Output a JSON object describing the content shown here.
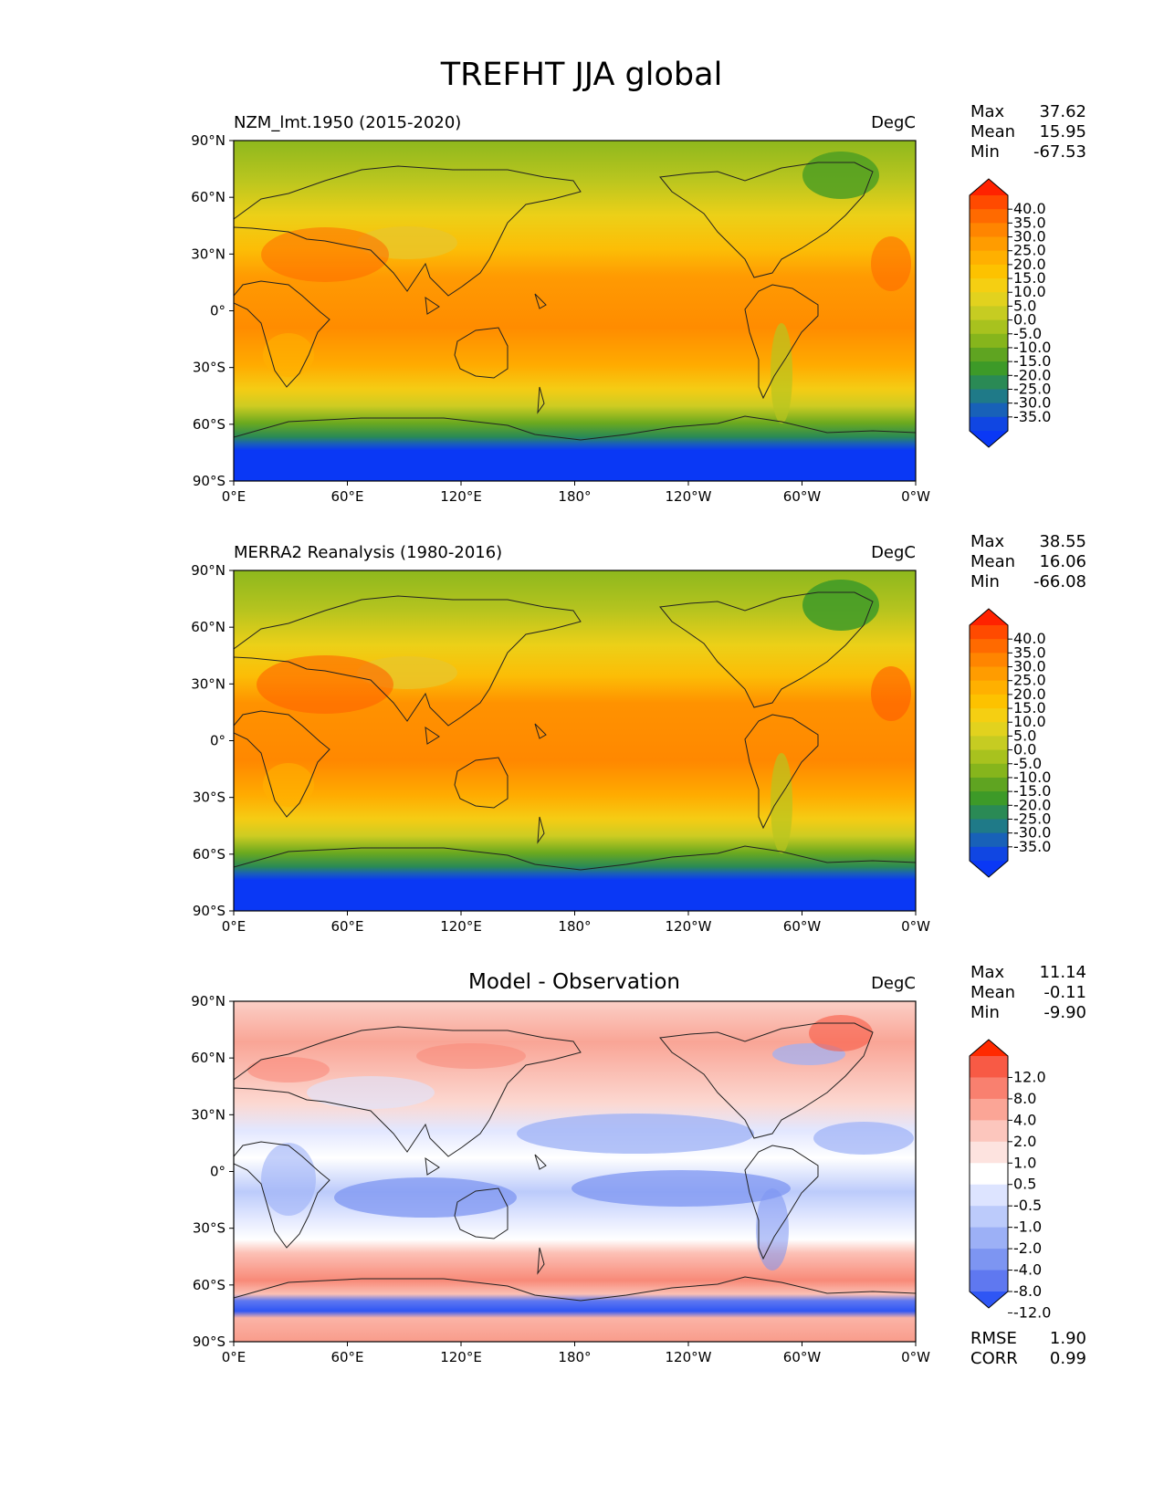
{
  "figure": {
    "title": "TREFHT JJA global"
  },
  "chart_data": [
    {
      "type": "heatmap",
      "panel": "model",
      "title": "NZM_lmt.1950 (2015-2020)",
      "units": "DegC",
      "x_ticks": [
        "0°E",
        "60°E",
        "120°E",
        "180°",
        "120°W",
        "60°W",
        "0°W"
      ],
      "y_ticks": [
        "90°N",
        "60°N",
        "30°N",
        "0°",
        "30°S",
        "60°S",
        "90°S"
      ],
      "xlim": [
        0,
        360
      ],
      "ylim": [
        -90,
        90
      ],
      "stats": [
        {
          "label": "Max",
          "value": "37.62"
        },
        {
          "label": "Mean",
          "value": "15.95"
        },
        {
          "label": "Min",
          "value": "-67.53"
        }
      ],
      "colorbar": {
        "labels": [
          "40.0",
          "35.0",
          "30.0",
          "25.0",
          "20.0",
          "15.0",
          "10.0",
          "5.0",
          "0.0",
          "-5.0",
          "-10.0",
          "-15.0",
          "-20.0",
          "-25.0",
          "-30.0",
          "-35.0"
        ],
        "colors": [
          "#ff2200",
          "#ff4a00",
          "#ff6a00",
          "#ff8500",
          "#ff9c00",
          "#ffb000",
          "#fdc200",
          "#f5cf12",
          "#e2d21e",
          "#c6cc22",
          "#a8c21e",
          "#86b51c",
          "#5fa421",
          "#3d9a28",
          "#2a8a55",
          "#1f7a88",
          "#1861b8",
          "#1046e2",
          "#0a38f5"
        ]
      },
      "zonal_profile_degC": [
        {
          "lat": 90,
          "value": 0
        },
        {
          "lat": 80,
          "value": 2
        },
        {
          "lat": 70,
          "value": 7
        },
        {
          "lat": 60,
          "value": 13
        },
        {
          "lat": 50,
          "value": 17
        },
        {
          "lat": 40,
          "value": 23
        },
        {
          "lat": 30,
          "value": 27
        },
        {
          "lat": 20,
          "value": 27
        },
        {
          "lat": 10,
          "value": 27
        },
        {
          "lat": 0,
          "value": 26
        },
        {
          "lat": -10,
          "value": 25
        },
        {
          "lat": -20,
          "value": 22
        },
        {
          "lat": -30,
          "value": 16
        },
        {
          "lat": -40,
          "value": 10
        },
        {
          "lat": -50,
          "value": 4
        },
        {
          "lat": -60,
          "value": -8
        },
        {
          "lat": -70,
          "value": -30
        },
        {
          "lat": -80,
          "value": -45
        },
        {
          "lat": -90,
          "value": -55
        }
      ]
    },
    {
      "type": "heatmap",
      "panel": "observation",
      "title": "MERRA2 Reanalysis (1980-2016)",
      "units": "DegC",
      "x_ticks": [
        "0°E",
        "60°E",
        "120°E",
        "180°",
        "120°W",
        "60°W",
        "0°W"
      ],
      "y_ticks": [
        "90°N",
        "60°N",
        "30°N",
        "0°",
        "30°S",
        "60°S",
        "90°S"
      ],
      "xlim": [
        0,
        360
      ],
      "ylim": [
        -90,
        90
      ],
      "stats": [
        {
          "label": "Max",
          "value": "38.55"
        },
        {
          "label": "Mean",
          "value": "16.06"
        },
        {
          "label": "Min",
          "value": "-66.08"
        }
      ],
      "colorbar": {
        "labels": [
          "40.0",
          "35.0",
          "30.0",
          "25.0",
          "20.0",
          "15.0",
          "10.0",
          "5.0",
          "0.0",
          "-5.0",
          "-10.0",
          "-15.0",
          "-20.0",
          "-25.0",
          "-30.0",
          "-35.0"
        ],
        "colors": [
          "#ff2200",
          "#ff4a00",
          "#ff6a00",
          "#ff8500",
          "#ff9c00",
          "#ffb000",
          "#fdc200",
          "#f5cf12",
          "#e2d21e",
          "#c6cc22",
          "#a8c21e",
          "#86b51c",
          "#5fa421",
          "#3d9a28",
          "#2a8a55",
          "#1f7a88",
          "#1861b8",
          "#1046e2",
          "#0a38f5"
        ]
      },
      "zonal_profile_degC": [
        {
          "lat": 90,
          "value": -1
        },
        {
          "lat": 80,
          "value": 1
        },
        {
          "lat": 70,
          "value": 6
        },
        {
          "lat": 60,
          "value": 12
        },
        {
          "lat": 50,
          "value": 16
        },
        {
          "lat": 40,
          "value": 23
        },
        {
          "lat": 30,
          "value": 27
        },
        {
          "lat": 20,
          "value": 28
        },
        {
          "lat": 10,
          "value": 28
        },
        {
          "lat": 0,
          "value": 27
        },
        {
          "lat": -10,
          "value": 26
        },
        {
          "lat": -20,
          "value": 23
        },
        {
          "lat": -30,
          "value": 17
        },
        {
          "lat": -40,
          "value": 11
        },
        {
          "lat": -50,
          "value": 3
        },
        {
          "lat": -60,
          "value": -9
        },
        {
          "lat": -70,
          "value": -32
        },
        {
          "lat": -80,
          "value": -48
        },
        {
          "lat": -90,
          "value": -55
        }
      ]
    },
    {
      "type": "heatmap",
      "panel": "difference",
      "title": "Model - Observation",
      "units": "DegC",
      "x_ticks": [
        "0°E",
        "60°E",
        "120°E",
        "180°",
        "120°W",
        "60°W",
        "0°W"
      ],
      "y_ticks": [
        "90°N",
        "60°N",
        "30°N",
        "0°",
        "30°S",
        "60°S",
        "90°S"
      ],
      "xlim": [
        0,
        360
      ],
      "ylim": [
        -90,
        90
      ],
      "stats": [
        {
          "label": "Max",
          "value": "11.14"
        },
        {
          "label": "Mean",
          "value": "-0.11"
        },
        {
          "label": "Min",
          "value": "-9.90"
        }
      ],
      "colorbar": {
        "labels": [
          "12.0",
          "8.0",
          "4.0",
          "2.0",
          "1.0",
          "0.5",
          "-0.5",
          "-1.0",
          "-2.0",
          "-4.0",
          "-8.0",
          "-12.0"
        ],
        "colors": [
          "#ff2a00",
          "#f85a45",
          "#f9806f",
          "#fba596",
          "#fcc6bd",
          "#fde3df",
          "#ffffff",
          "#dde4ff",
          "#bccbfb",
          "#9cb0f6",
          "#7d95f2",
          "#5f78f0",
          "#2f56f4"
        ]
      },
      "summary": [
        {
          "label": "RMSE",
          "value": "1.90"
        },
        {
          "label": "CORR",
          "value": "0.99"
        }
      ],
      "zonal_profile_degC": [
        {
          "lat": 90,
          "value": 1.5
        },
        {
          "lat": 75,
          "value": 1.5
        },
        {
          "lat": 60,
          "value": 1.2
        },
        {
          "lat": 45,
          "value": 1.5
        },
        {
          "lat": 30,
          "value": 0.5
        },
        {
          "lat": 20,
          "value": -1.0
        },
        {
          "lat": 10,
          "value": 0.2
        },
        {
          "lat": 0,
          "value": -0.3
        },
        {
          "lat": -10,
          "value": -1.5
        },
        {
          "lat": -20,
          "value": -0.8
        },
        {
          "lat": -30,
          "value": 0.3
        },
        {
          "lat": -40,
          "value": 1.5
        },
        {
          "lat": -50,
          "value": 2.0
        },
        {
          "lat": -60,
          "value": 0.8
        },
        {
          "lat": -65,
          "value": -3.0
        },
        {
          "lat": -70,
          "value": -5.0
        },
        {
          "lat": -80,
          "value": 1.8
        },
        {
          "lat": -90,
          "value": 2.0
        }
      ]
    }
  ]
}
